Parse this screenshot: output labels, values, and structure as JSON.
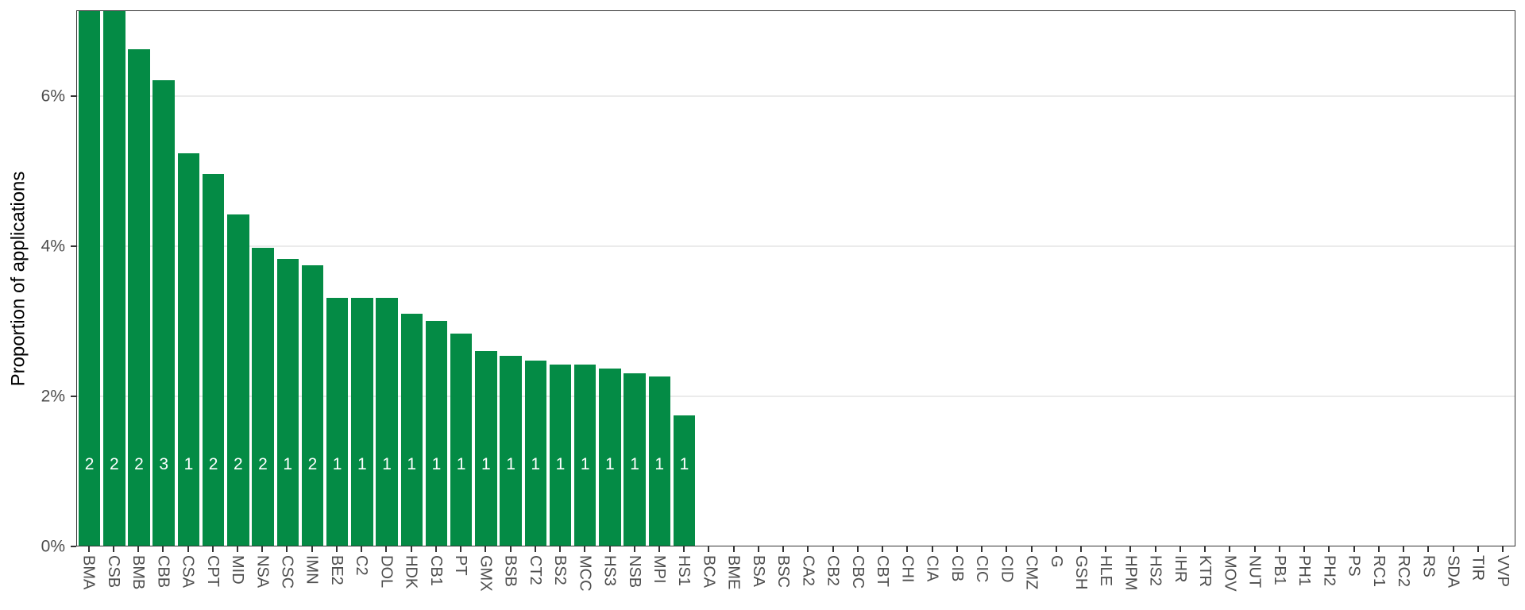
{
  "chart_data": {
    "type": "bar",
    "title": "",
    "xlabel": "",
    "ylabel": "Proportion of applications",
    "ylim": [
      0,
      7.14
    ],
    "grid": "major-y",
    "legend": "none",
    "y_ticks": [
      {
        "value": 0,
        "label": "0%"
      },
      {
        "value": 2,
        "label": "2%"
      },
      {
        "value": 4,
        "label": "4%"
      },
      {
        "value": 6,
        "label": "6%"
      }
    ],
    "grid_values": [
      2,
      4,
      6
    ],
    "categories": [
      "BMA",
      "CSB",
      "BMB",
      "CBB",
      "CSA",
      "CPT",
      "MID",
      "NSA",
      "CSC",
      "IMN",
      "BE2",
      "C2",
      "DOL",
      "HDK",
      "CB1",
      "PT",
      "GMX",
      "BSB",
      "CT2",
      "BS2",
      "MCC",
      "HS3",
      "NSB",
      "MPI",
      "HS1",
      "BCA",
      "BME",
      "BSA",
      "BSC",
      "CA2",
      "CB2",
      "CBC",
      "CBT",
      "CHI",
      "CIA",
      "CIB",
      "CIC",
      "CID",
      "CMZ",
      "G",
      "GSH",
      "HLE",
      "HPM",
      "HS2",
      "IHR",
      "KTR",
      "MOV",
      "NUT",
      "PB1",
      "PH1",
      "PH2",
      "PS",
      "RC1",
      "RC2",
      "RS",
      "SDA",
      "TIR",
      "VVP"
    ],
    "values": [
      7.15,
      7.15,
      6.63,
      6.22,
      5.24,
      4.97,
      4.42,
      3.98,
      3.83,
      3.75,
      3.31,
      3.31,
      3.31,
      3.1,
      3.0,
      2.83,
      2.6,
      2.54,
      2.47,
      2.42,
      2.42,
      2.37,
      2.3,
      2.26,
      1.74,
      0,
      0,
      0,
      0,
      0,
      0,
      0,
      0,
      0,
      0,
      0,
      0,
      0,
      0,
      0,
      0,
      0,
      0,
      0,
      0,
      0,
      0,
      0,
      0,
      0,
      0,
      0,
      0,
      0,
      0,
      0,
      0,
      0
    ],
    "bar_count_labels": [
      "2",
      "2",
      "2",
      "3",
      "1",
      "2",
      "2",
      "2",
      "1",
      "2",
      "1",
      "1",
      "1",
      "1",
      "1",
      "1",
      "1",
      "1",
      "1",
      "1",
      "1",
      "1",
      "1",
      "1",
      "1",
      null,
      null,
      null,
      null,
      null,
      null,
      null,
      null,
      null,
      null,
      null,
      null,
      null,
      null,
      null,
      null,
      null,
      null,
      null,
      null,
      null,
      null,
      null,
      null,
      null,
      null,
      null,
      null,
      null,
      null,
      null,
      null,
      null
    ]
  },
  "colors": {
    "bar": "#048B45",
    "count_label": "#FFFFFF",
    "gridline": "#EBEBEB",
    "panel_border": "#333333",
    "tick_mark": "#333333",
    "tick_label": "#4D4D4D",
    "axis_title": "#000000",
    "background": "#FFFFFF"
  }
}
